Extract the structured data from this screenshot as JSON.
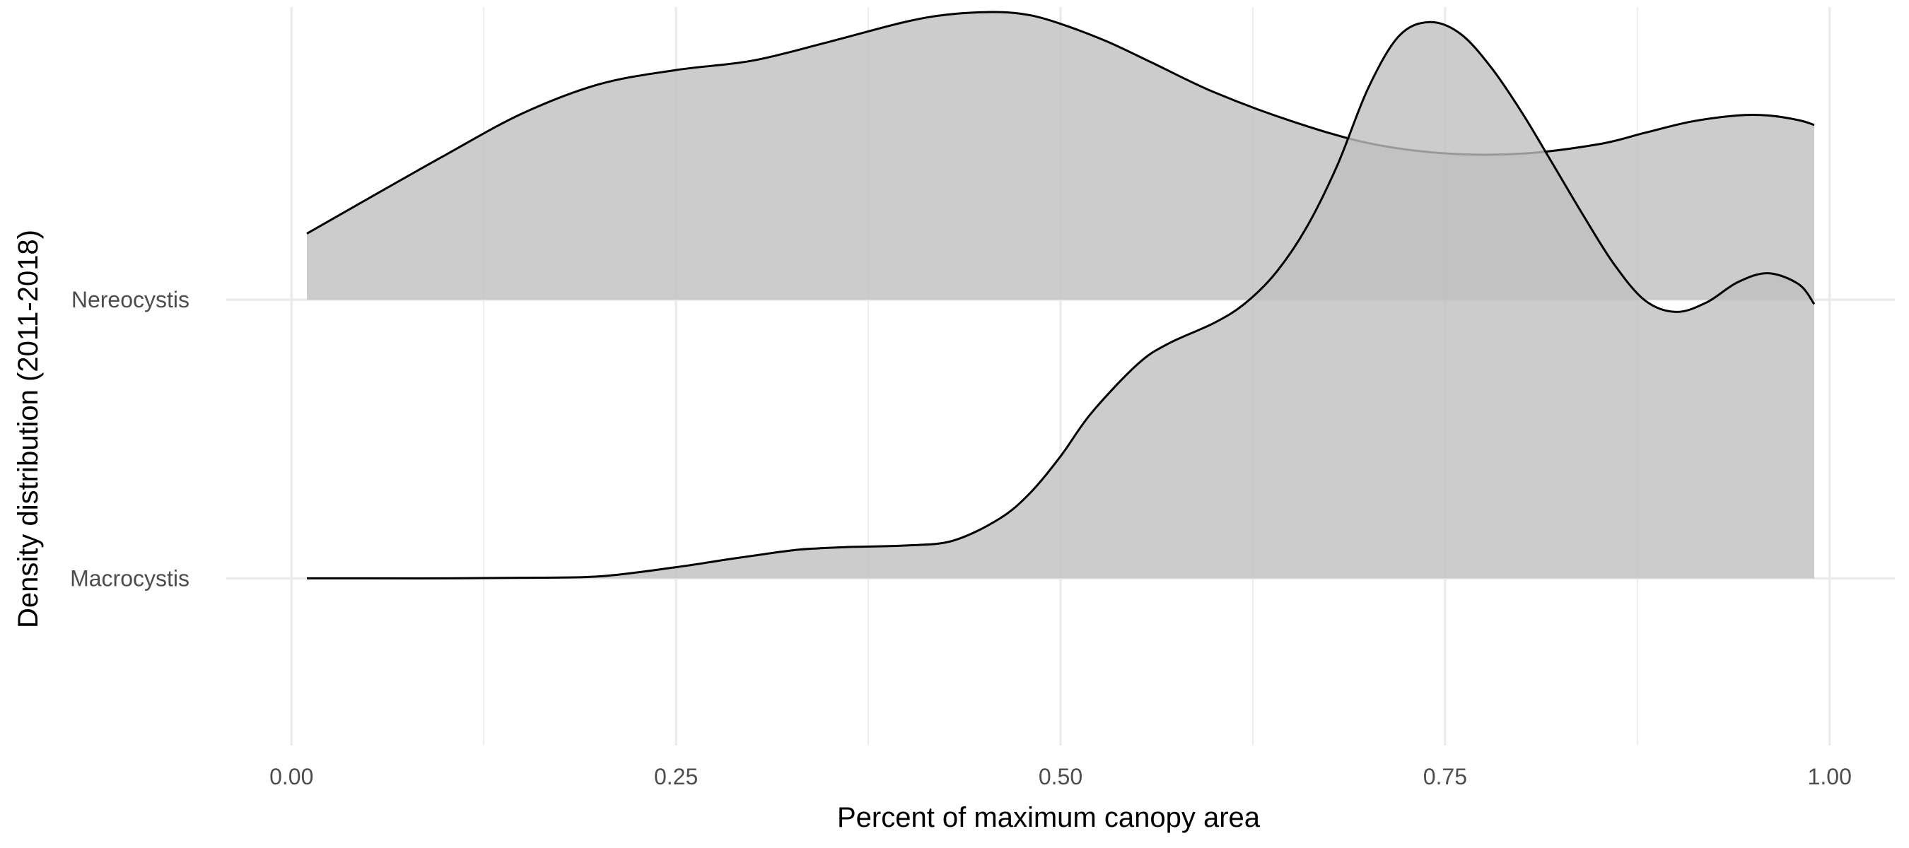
{
  "chart_data": {
    "type": "area",
    "subtype": "ridgeline-density",
    "xlabel": "Percent of maximum canopy area",
    "ylabel": "Density distribution (2011-2018)",
    "xlim": [
      -0.0424,
      1.0424
    ],
    "x_ticks": [
      {
        "value": 0.0,
        "label": "0.00"
      },
      {
        "value": 0.25,
        "label": "0.25"
      },
      {
        "value": 0.5,
        "label": "0.50"
      },
      {
        "value": 0.75,
        "label": "0.75"
      },
      {
        "value": 1.0,
        "label": "1.00"
      }
    ],
    "x_minor_grid": [
      0.125,
      0.375,
      0.625,
      0.875
    ],
    "categories": [
      "Macrocystis",
      "Nereocystis"
    ],
    "row_range": [
      0.4,
      3.05
    ],
    "grid": true,
    "legend": "none",
    "fill_color": "#bfbfbf",
    "line_color": "#000000",
    "series": [
      {
        "name": "Macrocystis",
        "baseline": 1,
        "x": [
          0.01,
          0.05,
          0.1,
          0.15,
          0.2,
          0.25,
          0.28,
          0.3,
          0.33,
          0.36,
          0.4,
          0.43,
          0.46,
          0.48,
          0.5,
          0.52,
          0.55,
          0.57,
          0.6,
          0.62,
          0.64,
          0.66,
          0.68,
          0.7,
          0.72,
          0.74,
          0.76,
          0.78,
          0.8,
          0.82,
          0.84,
          0.86,
          0.88,
          0.9,
          0.92,
          0.94,
          0.96,
          0.98,
          0.99
        ],
        "height": [
          0.0,
          0.0,
          0.0,
          0.002,
          0.007,
          0.04,
          0.065,
          0.081,
          0.103,
          0.112,
          0.118,
          0.135,
          0.213,
          0.305,
          0.438,
          0.593,
          0.768,
          0.842,
          0.917,
          0.987,
          1.097,
          1.26,
          1.483,
          1.759,
          1.946,
          1.996,
          1.954,
          1.833,
          1.671,
          1.487,
          1.301,
          1.126,
          0.997,
          0.956,
          0.99,
          1.062,
          1.095,
          1.055,
          0.984
        ]
      },
      {
        "name": "Nereocystis",
        "baseline": 2,
        "x": [
          0.01,
          0.05,
          0.1,
          0.15,
          0.2,
          0.25,
          0.3,
          0.35,
          0.4,
          0.43,
          0.46,
          0.48,
          0.5,
          0.53,
          0.56,
          0.6,
          0.65,
          0.7,
          0.75,
          0.8,
          0.85,
          0.88,
          0.91,
          0.94,
          0.96,
          0.98,
          0.99
        ],
        "height": [
          0.237,
          0.363,
          0.519,
          0.668,
          0.773,
          0.824,
          0.858,
          0.926,
          0.998,
          1.025,
          1.032,
          1.021,
          0.99,
          0.927,
          0.849,
          0.744,
          0.641,
          0.562,
          0.525,
          0.524,
          0.558,
          0.599,
          0.639,
          0.661,
          0.661,
          0.644,
          0.627
        ]
      }
    ]
  }
}
